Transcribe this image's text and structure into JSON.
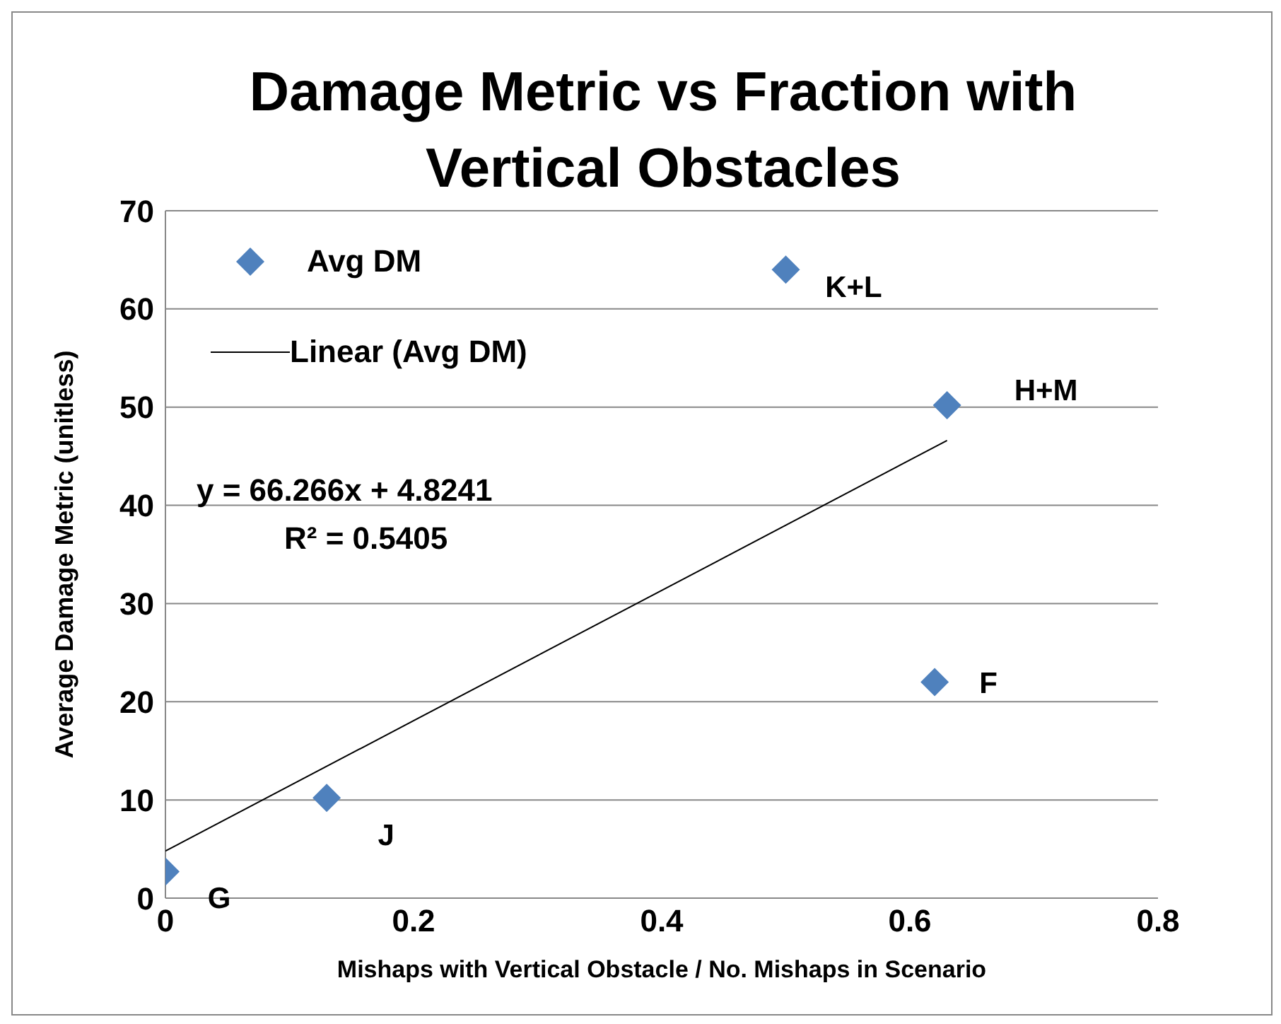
{
  "chart_data": {
    "type": "scatter",
    "title": "Damage Metric vs Fraction with Vertical Obstacles",
    "xlabel": "Mishaps with Vertical Obstacle / No. Mishaps in Scenario",
    "ylabel": "Average Damage Metric (unitless)",
    "series": [
      {
        "name": "Avg DM",
        "color": "#4f81bd",
        "marker": "diamond",
        "x": [
          0,
          0.13,
          0.5,
          0.63,
          0.62
        ],
        "values": [
          2.7,
          10.2,
          64,
          50.2,
          22
        ]
      },
      {
        "name": "Linear (Avg DM)",
        "type": "line",
        "color": "#000000",
        "marker": "none",
        "x": [
          0,
          0.63
        ],
        "values": [
          4.8,
          46.6
        ]
      }
    ],
    "annotations": [
      {
        "text": "G",
        "x": 0,
        "y": 2.7
      },
      {
        "text": "J",
        "x": 0.13,
        "y": 10.2
      },
      {
        "text": "K+L",
        "x": 0.5,
        "y": 64
      },
      {
        "text": "H+M",
        "x": 0.63,
        "y": 50.2
      },
      {
        "text": "F",
        "x": 0.62,
        "y": 22
      },
      "y = 66.266x + 4.8241",
      "R² = 0.5405"
    ],
    "xlim": [
      0,
      0.8
    ],
    "xticks": [
      0,
      0.2,
      0.4,
      0.6,
      0.8
    ],
    "ylim": [
      0,
      70
    ],
    "yticks": [
      0,
      10,
      20,
      30,
      40,
      50,
      60,
      70
    ],
    "grid": "y",
    "legend": "top left"
  }
}
